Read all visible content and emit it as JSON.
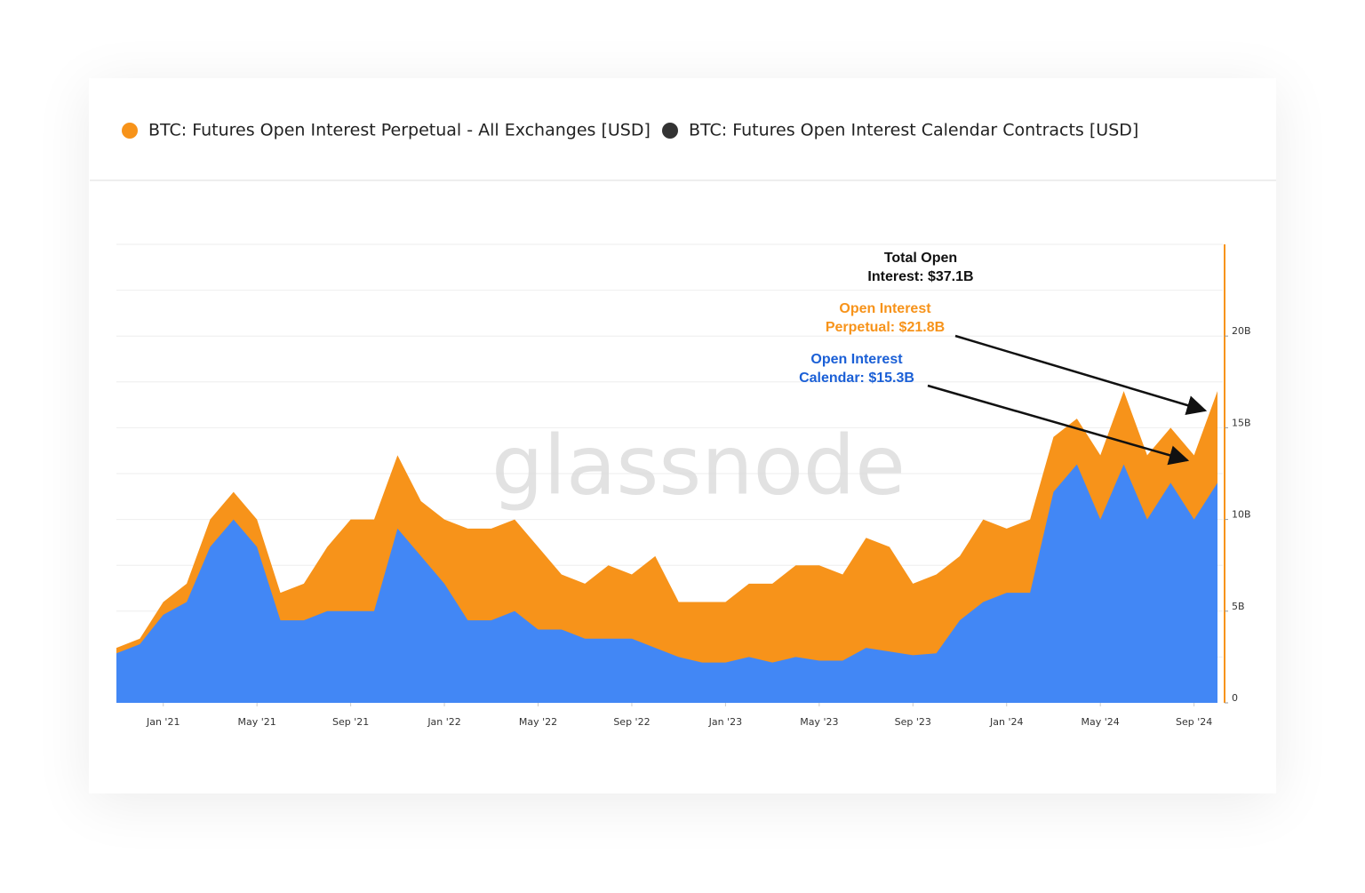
{
  "chart_data": {
    "type": "area",
    "watermark": "glassnode",
    "x": [
      "2020-11",
      "2020-12",
      "2021-01",
      "2021-02",
      "2021-03",
      "2021-04",
      "2021-05",
      "2021-06",
      "2021-07",
      "2021-08",
      "2021-09",
      "2021-10",
      "2021-11",
      "2021-12",
      "2022-01",
      "2022-02",
      "2022-03",
      "2022-04",
      "2022-05",
      "2022-06",
      "2022-07",
      "2022-08",
      "2022-09",
      "2022-10",
      "2022-11",
      "2022-12",
      "2023-01",
      "2023-02",
      "2023-03",
      "2023-04",
      "2023-05",
      "2023-06",
      "2023-07",
      "2023-08",
      "2023-09",
      "2023-10",
      "2023-11",
      "2023-12",
      "2024-01",
      "2024-02",
      "2024-03",
      "2024-04",
      "2024-05",
      "2024-06",
      "2024-07",
      "2024-08",
      "2024-09",
      "2024-10"
    ],
    "series": [
      {
        "name": "BTC: Futures Open Interest Perpetual - All Exchanges [USD]",
        "color": "#f7931a",
        "legend_color": "#f7931a",
        "values": [
          3,
          3.5,
          5.5,
          6.5,
          10,
          11.5,
          10,
          6,
          6.5,
          8.5,
          10,
          10,
          13.5,
          11,
          10,
          9.5,
          9.5,
          10,
          8.5,
          7,
          6.5,
          7.5,
          7,
          8,
          5.5,
          5.5,
          5.5,
          6.5,
          6.5,
          7.5,
          7.5,
          7,
          9,
          8.5,
          6.5,
          7,
          8,
          10,
          9.5,
          10,
          14.5,
          15.5,
          13.5,
          17,
          13.5,
          15,
          13.5,
          17
        ]
      },
      {
        "name": "BTC: Futures Open Interest Calendar Contracts [USD]",
        "color": "#4287f5",
        "legend_color": "#333333",
        "values": [
          2.7,
          3.2,
          4.8,
          5.5,
          8.5,
          10,
          8.5,
          4.5,
          4.5,
          5,
          5,
          5,
          9.5,
          8,
          6.5,
          4.5,
          4.5,
          5,
          4,
          4,
          3.5,
          3.5,
          3.5,
          3,
          2.5,
          2.2,
          2.2,
          2.5,
          2.2,
          2.5,
          2.3,
          2.3,
          3,
          2.8,
          2.6,
          2.7,
          4.5,
          5.5,
          6,
          6,
          11.5,
          13,
          10,
          13,
          10,
          12,
          10,
          12
        ]
      }
    ],
    "xlim": [
      "2020-11",
      "2024-10"
    ],
    "xticks": [
      {
        "value": "2021-01",
        "label": "Jan '21"
      },
      {
        "value": "2021-05",
        "label": "May '21"
      },
      {
        "value": "2021-09",
        "label": "Sep '21"
      },
      {
        "value": "2022-01",
        "label": "Jan '22"
      },
      {
        "value": "2022-05",
        "label": "May '22"
      },
      {
        "value": "2022-09",
        "label": "Sep '22"
      },
      {
        "value": "2023-01",
        "label": "Jan '23"
      },
      {
        "value": "2023-05",
        "label": "May '23"
      },
      {
        "value": "2023-09",
        "label": "Sep '23"
      },
      {
        "value": "2024-01",
        "label": "Jan '24"
      },
      {
        "value": "2024-05",
        "label": "May '24"
      },
      {
        "value": "2024-09",
        "label": "Sep '24"
      }
    ],
    "ylim": [
      0,
      25
    ],
    "yticks": [
      0,
      {
        "value": 5,
        "label": "5B"
      },
      {
        "value": 10,
        "label": "10B"
      },
      {
        "value": 15,
        "label": "15B"
      },
      {
        "value": 20,
        "label": "20B"
      }
    ],
    "ygrid": [
      2.5,
      5,
      7.5,
      10,
      12.5,
      15,
      17.5,
      20,
      22.5,
      25
    ],
    "annotations": [
      {
        "lines": [
          "Total Open",
          "Interest: $37.1B"
        ],
        "color": "#111111"
      },
      {
        "lines": [
          "Open Interest",
          "Perpetual: $21.8B"
        ],
        "color": "#f7931a"
      },
      {
        "lines": [
          "Open Interest",
          "Calendar: $15.3B"
        ],
        "color": "#1a5fd6"
      }
    ]
  }
}
